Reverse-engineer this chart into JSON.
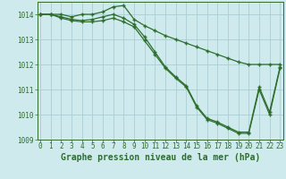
{
  "title": "Graphe pression niveau de la mer (hPa)",
  "hours": [
    0,
    1,
    2,
    3,
    4,
    5,
    6,
    7,
    8,
    9,
    10,
    11,
    12,
    13,
    14,
    15,
    16,
    17,
    18,
    19,
    20,
    21,
    22,
    23
  ],
  "line1": [
    1014.0,
    1014.0,
    1014.0,
    1013.9,
    1014.0,
    1014.0,
    1014.1,
    1014.3,
    1014.35,
    1013.8,
    1013.55,
    1013.35,
    1013.15,
    1013.0,
    1012.85,
    1012.7,
    1012.55,
    1012.4,
    1012.25,
    1012.1,
    1012.0,
    1012.0,
    1012.0,
    1012.0
  ],
  "line2": [
    1014.0,
    1014.0,
    1013.9,
    1013.8,
    1013.75,
    1013.8,
    1013.9,
    1014.0,
    1013.85,
    1013.6,
    1013.1,
    1012.5,
    1011.9,
    1011.5,
    1011.15,
    1010.35,
    1009.85,
    1009.7,
    1009.5,
    1009.3,
    1009.3,
    1011.1,
    1010.1,
    1011.9
  ],
  "line3": [
    1014.0,
    1014.0,
    1013.85,
    1013.75,
    1013.7,
    1013.7,
    1013.75,
    1013.85,
    1013.7,
    1013.5,
    1012.95,
    1012.4,
    1011.85,
    1011.45,
    1011.1,
    1010.3,
    1009.8,
    1009.65,
    1009.45,
    1009.25,
    1009.25,
    1011.0,
    1010.0,
    1011.85
  ],
  "ylim": [
    1009.0,
    1014.5
  ],
  "yticks": [
    1009,
    1010,
    1011,
    1012,
    1013,
    1014
  ],
  "xlim": [
    -0.3,
    23.3
  ],
  "bg_color": "#ceeaec",
  "grid_color": "#aacdd4",
  "line_color": "#2d6e2d",
  "marker": "+",
  "marker_size": 3.5,
  "marker_edge_width": 1.0,
  "line_width": 0.9,
  "tick_label_size": 5.5,
  "xlabel_size": 7.0
}
